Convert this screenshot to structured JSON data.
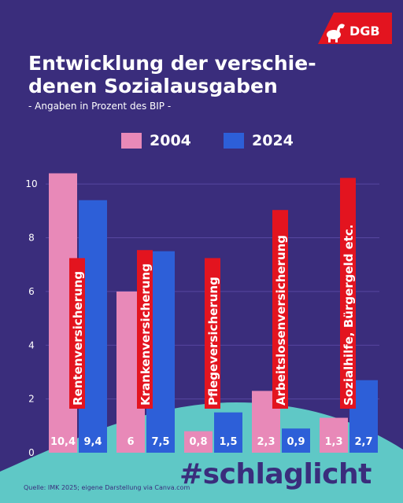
{
  "brand": {
    "logo_text": "DGB",
    "accent_color": "#e3141f"
  },
  "header": {
    "title_line1": "Entwicklung der verschie-",
    "title_line2": "denen Sozialausgaben",
    "subtitle": "- Angaben in Prozent des BIP -"
  },
  "colors": {
    "background": "#3a2d7c",
    "series_2004": "#e889b8",
    "series_2024": "#2d5fd8",
    "wave": "#5fc8c6",
    "label_bg": "#e3141f"
  },
  "chart_data": {
    "type": "bar",
    "categories": [
      "Rentenversicherung",
      "Krankenversicherung",
      "Pflegeversicherung",
      "Arbeitslosenversicherung",
      "Sozialhilfe, Bürgergeld etc."
    ],
    "series": [
      {
        "name": "2004",
        "values": [
          10.4,
          6,
          0.8,
          2.3,
          1.3
        ],
        "labels": [
          "10,4",
          "6",
          "0,8",
          "2,3",
          "1,3"
        ]
      },
      {
        "name": "2024",
        "values": [
          9.4,
          7.5,
          1.5,
          0.9,
          2.7
        ],
        "labels": [
          "9,4",
          "7,5",
          "1,5",
          "0,9",
          "2,7"
        ]
      }
    ],
    "yticks": [
      "0",
      "2",
      "4",
      "6",
      "8",
      "10"
    ],
    "ylim": [
      0,
      11
    ],
    "grid": true,
    "legend": "top-center"
  },
  "footer": {
    "hashtag": "#schlaglicht",
    "source": "Quelle: IMK 2025; eigene Darstellung via Canva.com"
  }
}
